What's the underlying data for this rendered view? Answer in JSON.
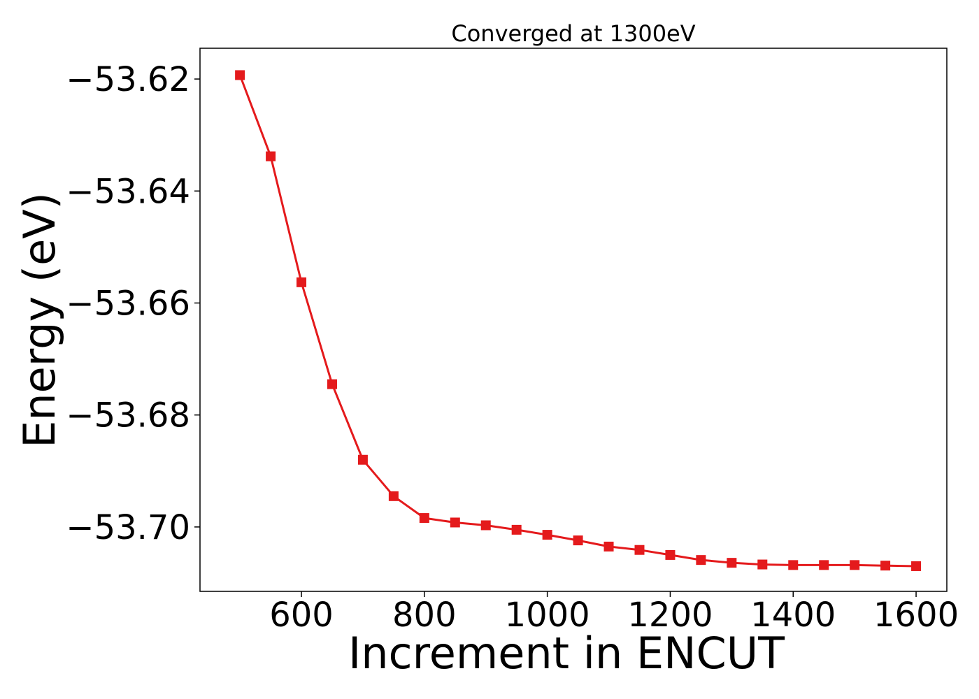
{
  "chart_data": {
    "type": "line",
    "title": "Converged at 1300eV",
    "xlabel": "Increment in ENCUT",
    "ylabel": "Energy (eV)",
    "xlim": [
      435,
      1650
    ],
    "ylim": [
      -53.7115,
      -53.6145
    ],
    "xticks": [
      600,
      800,
      1000,
      1200,
      1400,
      1600
    ],
    "xtick_labels": [
      "600",
      "800",
      "1000",
      "1200",
      "1400",
      "1600"
    ],
    "yticks": [
      -53.62,
      -53.64,
      -53.66,
      -53.68,
      -53.7
    ],
    "ytick_labels": [
      "−53.62",
      "−53.64",
      "−53.66",
      "−53.68",
      "−53.70"
    ],
    "grid": false,
    "series": [
      {
        "color": "#e41a1c",
        "marker": "square",
        "x": [
          500,
          550,
          600,
          650,
          700,
          750,
          800,
          850,
          900,
          950,
          1000,
          1050,
          1100,
          1150,
          1200,
          1250,
          1300,
          1350,
          1400,
          1450,
          1500,
          1550,
          1600
        ],
        "y": [
          -53.6193,
          -53.6338,
          -53.6563,
          -53.6745,
          -53.688,
          -53.6945,
          -53.6984,
          -53.6992,
          -53.6997,
          -53.7005,
          -53.7014,
          -53.7024,
          -53.7035,
          -53.7041,
          -53.705,
          -53.7059,
          -53.7064,
          -53.7067,
          -53.7068,
          -53.7068,
          -53.7068,
          -53.7069,
          -53.707
        ]
      }
    ]
  }
}
